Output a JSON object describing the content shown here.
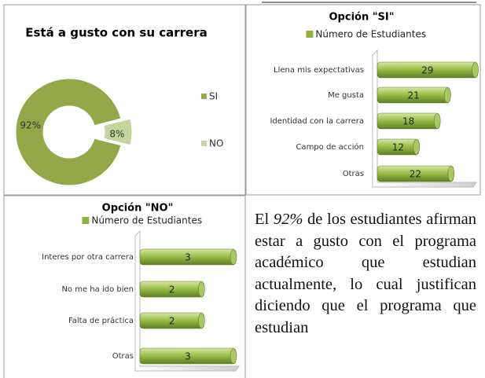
{
  "chart_data": [
    {
      "type": "pie",
      "title": "Está a gusto con su carrera",
      "categories": [
        "SI",
        "NO"
      ],
      "values": [
        92,
        8
      ],
      "value_labels": [
        "92%",
        "8%"
      ],
      "colors": [
        "#94a84a",
        "#c4d69b"
      ],
      "donut": true,
      "legend": "right"
    },
    {
      "type": "bar",
      "horizontal": true,
      "title": "Opción \"SI\"",
      "categories": [
        "Llena mis expectativas",
        "Me gusta",
        "Identidad con la carrera",
        "Campo de acción",
        "Otras"
      ],
      "series": [
        {
          "name": "Número de Estudiantes",
          "color": "#8fb33a",
          "values": [
            29,
            21,
            18,
            12,
            22
          ]
        }
      ],
      "xlim": [
        0,
        30
      ],
      "legend": "top"
    },
    {
      "type": "bar",
      "horizontal": true,
      "title": "Opción \"NO\"",
      "categories": [
        "Interes por otra carrera",
        "No me ha ido bien",
        "Falta de práctica",
        "Otras"
      ],
      "series": [
        {
          "name": "Número de Estudiantes",
          "color": "#8fb33a",
          "values": [
            3,
            2,
            2,
            3
          ]
        }
      ],
      "xlim": [
        0,
        3
      ],
      "legend": "top"
    }
  ],
  "paragraph": {
    "parts": [
      "El",
      "92%",
      "de los estudiantes afirman estar a gusto con el programa académico que estudian actualmente, lo cual justifican diciendo que el programa que estudian"
    ]
  }
}
